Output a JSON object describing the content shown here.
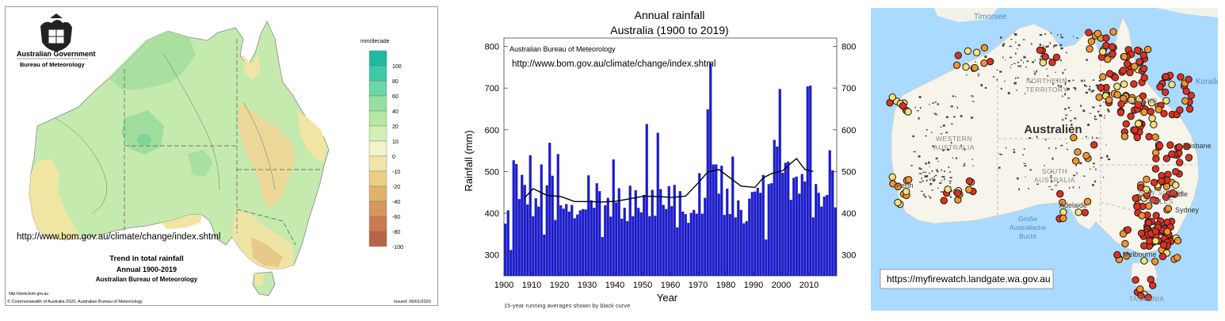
{
  "rainfall_map": {
    "gov_line1": "Australian Government",
    "gov_line2": "Bureau of Meteorology",
    "legend_unit": "mm/decade",
    "legend_labels": [
      "100",
      "80",
      "60",
      "40",
      "20",
      "10",
      "0",
      "-10",
      "-20",
      "-40",
      "-60",
      "-80",
      "-100"
    ],
    "legend_colors": [
      "#20b9a0",
      "#3ec9a8",
      "#6cd6a6",
      "#95df9f",
      "#b5e8a2",
      "#d2f0b3",
      "#f1f3c8",
      "#f2e4a7",
      "#ebcf84",
      "#e0b36c",
      "#d69860",
      "#c97c52",
      "#b9634a"
    ],
    "url_text": "http://www.bom.gov.au/climate/change/index.shtml",
    "title_line1": "Trend in total rainfall",
    "title_line2": "Annual 1900-2019",
    "title_line3": "Australian Bureau of Meteorology",
    "footer_url": "http://www.bom.gov.au",
    "copyright": "© Commonwealth of Australia 2020, Australian Bureau of Meteorology",
    "issued": "Issued: 06/01/2020"
  },
  "chart_data": {
    "type": "bar",
    "title": "Annual rainfall",
    "subtitle": "Australia (1900 to 2019)",
    "source_label": "Australian Bureau of Meteorology",
    "url_text": "http://www.bom.gov.au/climate/change/index.shtml",
    "xlabel": "Year",
    "ylabel": "Rainfall (mm)",
    "footnote": "15-year running averages shown by black curve",
    "xlim": [
      1900,
      2019
    ],
    "ylim": [
      250,
      820
    ],
    "xticks": [
      1900,
      1910,
      1920,
      1930,
      1940,
      1950,
      1960,
      1970,
      1980,
      1990,
      2000,
      2010
    ],
    "yticks": [
      300,
      400,
      500,
      600,
      700,
      800
    ],
    "bar_color": "#1c1cc8",
    "years_start": 1900,
    "values": [
      375,
      407,
      312,
      527,
      518,
      434,
      492,
      468,
      421,
      539,
      393,
      436,
      416,
      517,
      349,
      467,
      569,
      490,
      384,
      542,
      419,
      411,
      422,
      404,
      420,
      388,
      397,
      407,
      410,
      409,
      491,
      431,
      413,
      472,
      453,
      343,
      419,
      437,
      392,
      529,
      426,
      460,
      387,
      413,
      381,
      466,
      393,
      455,
      413,
      402,
      444,
      614,
      393,
      456,
      394,
      593,
      458,
      420,
      410,
      465,
      417,
      468,
      366,
      453,
      404,
      398,
      377,
      401,
      408,
      399,
      496,
      399,
      437,
      649,
      760,
      517,
      517,
      447,
      514,
      396,
      459,
      398,
      536,
      390,
      431,
      408,
      376,
      381,
      435,
      451,
      452,
      461,
      449,
      492,
      337,
      470,
      472,
      576,
      560,
      698,
      497,
      521,
      524,
      432,
      485,
      488,
      447,
      494,
      476,
      704,
      706,
      390,
      470,
      449,
      416,
      440,
      444,
      551,
      503,
      414
    ],
    "running_mean_years": [
      1907,
      1910,
      1915,
      1920,
      1925,
      1930,
      1935,
      1940,
      1945,
      1950,
      1955,
      1960,
      1965,
      1970,
      1973,
      1977,
      1980,
      1985,
      1990,
      1993,
      1996,
      2000,
      2003,
      2005,
      2008,
      2011
    ],
    "running_mean_values": [
      437,
      459,
      443,
      440,
      428,
      428,
      427,
      429,
      435,
      441,
      440,
      438,
      441,
      476,
      499,
      505,
      490,
      465,
      462,
      485,
      495,
      502,
      520,
      531,
      505,
      500
    ]
  },
  "fire_map": {
    "labels": {
      "timor": "Timorsee",
      "koralle": "Koralle",
      "nt1": "NORTHERN",
      "nt2": "TERRITORY",
      "qld": "ENSLAND",
      "country": "Australien",
      "wa1": "WESTERN",
      "wa2": "AUSTRALIA",
      "sa1": "SOUTH",
      "sa2": "AUSTRALIA",
      "brisbane": "Brisbane",
      "perth": "Perth",
      "adelaide": "Adelaide",
      "bight1": "Große",
      "bight2": "Australische",
      "bight3": "Bucht",
      "nsw1": "NEW SOUTH",
      "nsw2": "WALES",
      "newcastle": "stle",
      "sydney": "Sydney",
      "melbourne": "Melbourne",
      "tasmania": "TASMANIA"
    },
    "url_text": "https://myfirewatch.landgate.wa.gov.au",
    "colors": {
      "water": "#aadaff",
      "land": "#f7f4ec",
      "high": "#e03020",
      "mid": "#f2942a",
      "low": "#f8e07a"
    }
  }
}
